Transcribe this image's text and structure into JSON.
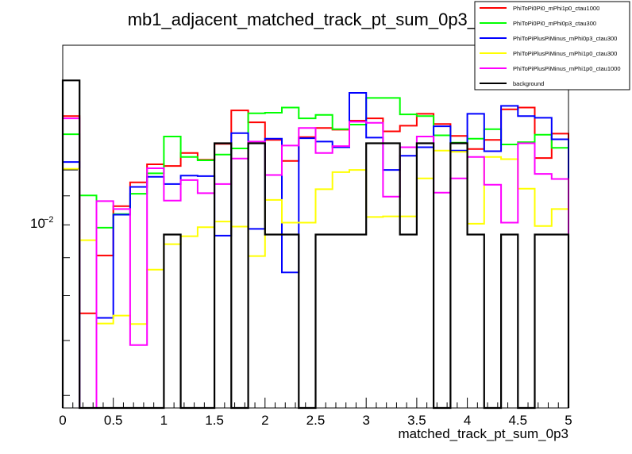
{
  "chart_data": {
    "type": "line",
    "title": "mb1_adjacent_matched_track_pt_sum_0p3_0",
    "xlabel": "matched_track_pt_sum_0p3",
    "ylabel": "",
    "xlim": [
      0,
      5
    ],
    "ylog": true,
    "ylim_exponent_range": [
      -2.42,
      -1.78
    ],
    "x_ticks": [
      "0",
      "0.5",
      "1",
      "1.5",
      "2",
      "2.5",
      "3",
      "3.5",
      "4",
      "4.5",
      "5"
    ],
    "y_tick_label": {
      "base": "10",
      "exponent": "−2"
    },
    "legend_position": "top-right",
    "bin_edges": [
      0,
      0.1667,
      0.3333,
      0.5,
      0.6667,
      0.8333,
      1.0,
      1.1667,
      1.3333,
      1.5,
      1.6667,
      1.8333,
      2.0,
      2.1667,
      2.3333,
      2.5,
      2.6667,
      2.8333,
      3.0,
      3.1667,
      3.3333,
      3.5,
      3.6667,
      3.8333,
      4.0,
      4.1667,
      4.3333,
      4.5,
      4.6667,
      4.8333,
      5.0
    ],
    "series": [
      {
        "name": "PhiToPi0Pi0_mPhi1p0_ctau1000",
        "color": "#ff0000",
        "values": [
          -1.905,
          -2.253,
          -2.151,
          -2.064,
          -2.022,
          -1.99,
          -1.993,
          -1.97,
          -1.982,
          -1.954,
          -1.895,
          -1.916,
          -1.947,
          -1.984,
          -1.942,
          -1.926,
          -1.929,
          -1.913,
          -1.909,
          -1.932,
          -1.922,
          -1.901,
          -1.919,
          -1.94,
          -1.963,
          -1.947,
          -1.893,
          -1.89,
          -1.979,
          -1.936
        ]
      },
      {
        "name": "PhiToPi0Pi0_mPhi0p3_ctau300",
        "color": "#00ff00",
        "values": [
          -1.937,
          -2.045,
          -2.102,
          -2.078,
          -2.042,
          -2.006,
          -1.941,
          -1.977,
          -1.983,
          -1.973,
          -1.962,
          -1.9,
          -1.899,
          -1.89,
          -1.909,
          -1.903,
          -1.928,
          -1.92,
          -1.873,
          -1.873,
          -1.902,
          -1.905,
          -1.939,
          -1.952,
          -1.945,
          -1.928,
          -1.955,
          -1.951,
          -1.938,
          -1.961
        ]
      },
      {
        "name": "PhiToPiPlusPiMinus_mPhi0p3_ctau300",
        "color": "#0000ff",
        "values": [
          -1.986,
          -2.454,
          -2.261,
          -2.079,
          -2.03,
          -2.012,
          -2.025,
          -2.01,
          -2.011,
          -2.116,
          -1.935,
          -2.104,
          -1.945,
          -2.181,
          -1.944,
          -1.95,
          -1.96,
          -1.864,
          -1.943,
          -2.0,
          -1.975,
          -1.96,
          -1.923,
          -1.966,
          -1.901,
          -1.967,
          -1.887,
          -1.905,
          -1.908,
          -1.946
        ]
      },
      {
        "name": "PhiToPiPlusPiMinus_mPhi1p0_ctau300",
        "color": "#ffff00",
        "values": [
          -1.998,
          -2.124,
          -2.271,
          -2.257,
          -2.272,
          -2.176,
          -2.131,
          -2.117,
          -2.101,
          -2.091,
          -2.1,
          -2.152,
          -2.053,
          -2.093,
          -2.093,
          -2.034,
          -2.004,
          -2.0,
          -2.083,
          -2.082,
          -2.082,
          -2.015,
          -1.966,
          -1.968,
          -2.095,
          -1.977,
          -1.981,
          -2.033,
          -2.099,
          -2.069
        ]
      },
      {
        "name": "PhiToPiPlusPiMinus_mPhi1p0_ctau1000",
        "color": "#ff00ff",
        "values": [
          -1.909,
          -2.5,
          -2.055,
          -2.069,
          -2.309,
          -1.997,
          -2.054,
          -2.018,
          -2.041,
          -2.025,
          -1.98,
          -1.95,
          -2.009,
          -1.957,
          -1.926,
          -1.97,
          -1.958,
          -1.915,
          -1.917,
          -2.047,
          -1.96,
          -1.941,
          -2.04,
          -2.015,
          -1.977,
          -2.026,
          -2.093,
          -1.953,
          -2.007,
          -2.016
        ]
      },
      {
        "name": "background",
        "color": "#000000",
        "values": [
          -1.842,
          -2.5,
          -2.5,
          -2.5,
          -2.5,
          -2.5,
          -2.114,
          -2.5,
          -2.5,
          -1.953,
          -2.5,
          -1.953,
          -2.114,
          -2.114,
          -2.5,
          -2.114,
          -2.114,
          -2.114,
          -1.953,
          -1.953,
          -2.114,
          -1.953,
          -2.5,
          -1.953,
          -2.114,
          -2.5,
          -2.114,
          -2.5,
          -2.114,
          -2.114
        ]
      }
    ]
  }
}
